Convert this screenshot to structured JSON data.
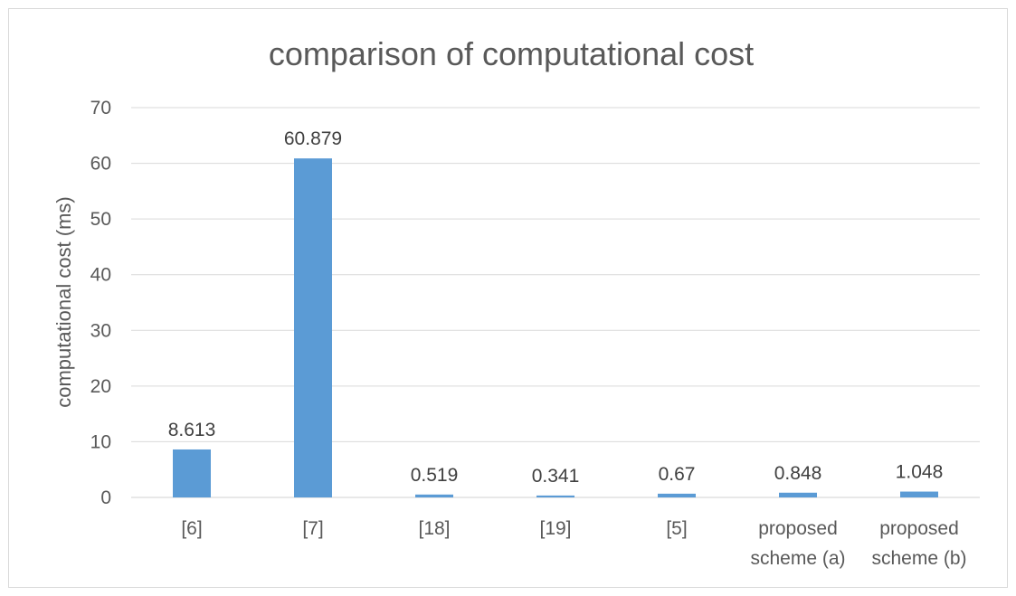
{
  "chart_data": {
    "type": "bar",
    "title": "comparison of computational cost",
    "ylabel": "computational cost (ms)",
    "xlabel": "",
    "ylim": [
      0,
      70
    ],
    "yticks": [
      0,
      10,
      20,
      30,
      40,
      50,
      60,
      70
    ],
    "grid": true,
    "legend": "none",
    "bar_color": "#5b9bd5",
    "categories": [
      [
        "[6]"
      ],
      [
        "[7]"
      ],
      [
        "[18]"
      ],
      [
        "[19]"
      ],
      [
        "[5]"
      ],
      [
        "proposed",
        "scheme (a)"
      ],
      [
        "proposed",
        "scheme (b)"
      ]
    ],
    "values": [
      8.613,
      60.879,
      0.519,
      0.341,
      0.67,
      0.848,
      1.048
    ],
    "data_labels": [
      "8.613",
      "60.879",
      "0.519",
      "0.341",
      "0.67",
      "0.848",
      "1.048"
    ]
  }
}
